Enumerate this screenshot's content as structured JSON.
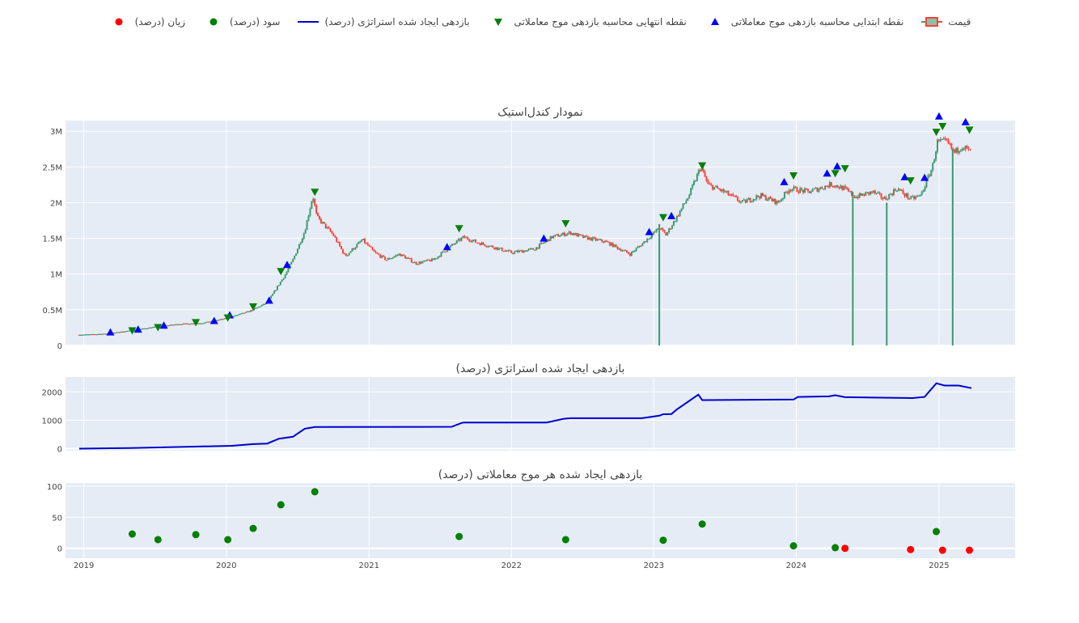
{
  "legend": [
    {
      "key": "price",
      "label": "قیمت",
      "color": "#3d9970"
    },
    {
      "key": "buy",
      "label": "نقطه ابتدایی محاسبه بازدهی موج معاملاتی",
      "color": "#0000ff"
    },
    {
      "key": "sell",
      "label": "نقطه انتهایی محاسبه بازدهی موج معاملاتی",
      "color": "#008000"
    },
    {
      "key": "strategy",
      "label": "بازدهی ایجاد شده استراتژی (درصد)",
      "color": "#0000cd"
    },
    {
      "key": "profit",
      "label": "سود (درصد)",
      "color": "#008000"
    },
    {
      "key": "loss",
      "label": "زیان (درصد)",
      "color": "#ff0000"
    }
  ],
  "chart_data": [
    {
      "type": "candlestick",
      "title": "نمودار کندل‌استیک",
      "ylim": [
        0,
        3150000
      ],
      "yticks": [
        0,
        500000,
        1000000,
        1500000,
        2000000,
        2500000,
        3000000
      ],
      "ytick_labels": [
        "0",
        "0.5M",
        "1M",
        "1.5M",
        "2M",
        "2.5M",
        "3M"
      ],
      "up_color": "#3d9970",
      "down_color": "#ff4136",
      "close_path": [
        [
          "2018-12-20",
          150000
        ],
        [
          "2019-03-01",
          165000
        ],
        [
          "2019-05-01",
          210000
        ],
        [
          "2019-07-01",
          260000
        ],
        [
          "2019-09-01",
          300000
        ],
        [
          "2019-11-01",
          315000
        ],
        [
          "2020-01-01",
          380000
        ],
        [
          "2020-03-01",
          480000
        ],
        [
          "2020-04-15",
          600000
        ],
        [
          "2020-06-01",
          1000000
        ],
        [
          "2020-06-20",
          1200000
        ],
        [
          "2020-07-20",
          1600000
        ],
        [
          "2020-08-10",
          2100000
        ],
        [
          "2020-08-20",
          1800000
        ],
        [
          "2020-10-01",
          1550000
        ],
        [
          "2020-11-01",
          1250000
        ],
        [
          "2020-12-15",
          1480000
        ],
        [
          "2021-01-15",
          1300000
        ],
        [
          "2021-02-15",
          1200000
        ],
        [
          "2021-03-20",
          1280000
        ],
        [
          "2021-05-01",
          1150000
        ],
        [
          "2021-06-15",
          1200000
        ],
        [
          "2021-08-01",
          1400000
        ],
        [
          "2021-09-01",
          1520000
        ],
        [
          "2021-10-01",
          1450000
        ],
        [
          "2021-11-15",
          1380000
        ],
        [
          "2022-01-01",
          1300000
        ],
        [
          "2022-03-01",
          1350000
        ],
        [
          "2022-04-15",
          1520000
        ],
        [
          "2022-06-01",
          1580000
        ],
        [
          "2022-07-01",
          1520000
        ],
        [
          "2022-09-01",
          1450000
        ],
        [
          "2022-11-01",
          1280000
        ],
        [
          "2022-12-01",
          1420000
        ],
        [
          "2023-01-15",
          1650000
        ],
        [
          "2023-02-01",
          1550000
        ],
        [
          "2023-03-01",
          1800000
        ],
        [
          "2023-04-01",
          2100000
        ],
        [
          "2023-05-01",
          2500000
        ],
        [
          "2023-05-20",
          2250000
        ],
        [
          "2023-07-01",
          2150000
        ],
        [
          "2023-08-15",
          2000000
        ],
        [
          "2023-10-01",
          2100000
        ],
        [
          "2023-11-15",
          2000000
        ],
        [
          "2023-12-15",
          2200000
        ],
        [
          "2024-02-01",
          2150000
        ],
        [
          "2024-04-01",
          2260000
        ],
        [
          "2024-05-01",
          2200000
        ],
        [
          "2024-06-01",
          2080000
        ],
        [
          "2024-07-15",
          2150000
        ],
        [
          "2024-08-15",
          2050000
        ],
        [
          "2024-09-15",
          2200000
        ],
        [
          "2024-10-20",
          2050000
        ],
        [
          "2024-11-15",
          2100000
        ],
        [
          "2024-12-15",
          2500000
        ],
        [
          "2024-12-28",
          2850000
        ],
        [
          "2025-01-20",
          2850000
        ],
        [
          "2025-02-10",
          2700000
        ],
        [
          "2025-03-01",
          2800000
        ],
        [
          "2025-03-25",
          2700000
        ]
      ],
      "spikes": [
        {
          "date": "2023-01-15",
          "low": 0,
          "high": 1700000
        },
        {
          "date": "2024-05-25",
          "low": 0,
          "high": 2150000
        },
        {
          "date": "2024-08-20",
          "low": 0,
          "high": 2000000
        },
        {
          "date": "2025-02-05",
          "low": 0,
          "high": 2750000
        }
      ],
      "buy_points": [
        [
          "2019-03-10",
          185000
        ],
        [
          "2019-05-20",
          225000
        ],
        [
          "2019-07-25",
          280000
        ],
        [
          "2019-12-01",
          345000
        ],
        [
          "2020-01-10",
          425000
        ],
        [
          "2020-04-20",
          630000
        ],
        [
          "2020-06-05",
          1130000
        ],
        [
          "2021-07-20",
          1380000
        ],
        [
          "2022-03-25",
          1500000
        ],
        [
          "2022-12-20",
          1590000
        ],
        [
          "2023-02-15",
          1815000
        ],
        [
          "2023-12-01",
          2290000
        ],
        [
          "2024-03-20",
          2410000
        ],
        [
          "2024-04-15",
          2510000
        ],
        [
          "2024-10-05",
          2360000
        ],
        [
          "2024-11-25",
          2350000
        ],
        [
          "2025-01-01",
          3210000
        ],
        [
          "2025-03-10",
          3130000
        ]
      ],
      "sell_points": [
        [
          "2019-05-05",
          210000
        ],
        [
          "2019-07-10",
          255000
        ],
        [
          "2019-10-15",
          325000
        ],
        [
          "2020-01-05",
          390000
        ],
        [
          "2020-03-10",
          545000
        ],
        [
          "2020-05-20",
          1040000
        ],
        [
          "2020-08-15",
          2150000
        ],
        [
          "2021-08-20",
          1640000
        ],
        [
          "2022-05-20",
          1710000
        ],
        [
          "2023-01-25",
          1795000
        ],
        [
          "2023-05-05",
          2520000
        ],
        [
          "2023-12-25",
          2380000
        ],
        [
          "2024-04-10",
          2410000
        ],
        [
          "2024-05-05",
          2480000
        ],
        [
          "2024-10-20",
          2310000
        ],
        [
          "2024-12-25",
          2990000
        ],
        [
          "2025-01-10",
          3070000
        ],
        [
          "2025-03-20",
          3020000
        ]
      ]
    },
    {
      "type": "line",
      "title": "بازدهی ایجاد شده استراتژی (درصد)",
      "ylim": [
        -70,
        2520
      ],
      "yticks": [
        0,
        1000,
        2000
      ],
      "ytick_labels": [
        "0",
        "1000",
        "2000"
      ],
      "color": "#0000cd",
      "points": [
        [
          "2018-12-20",
          0
        ],
        [
          "2019-05-01",
          20
        ],
        [
          "2019-10-01",
          70
        ],
        [
          "2020-01-15",
          100
        ],
        [
          "2020-03-10",
          160
        ],
        [
          "2020-04-15",
          180
        ],
        [
          "2020-05-15",
          350
        ],
        [
          "2020-06-20",
          420
        ],
        [
          "2020-07-20",
          700
        ],
        [
          "2020-08-15",
          760
        ],
        [
          "2021-08-01",
          770
        ],
        [
          "2021-08-25",
          900
        ],
        [
          "2021-09-01",
          920
        ],
        [
          "2022-04-01",
          920
        ],
        [
          "2022-05-15",
          1050
        ],
        [
          "2022-06-01",
          1070
        ],
        [
          "2022-12-01",
          1070
        ],
        [
          "2023-01-15",
          1160
        ],
        [
          "2023-01-25",
          1210
        ],
        [
          "2023-02-15",
          1220
        ],
        [
          "2023-03-01",
          1380
        ],
        [
          "2023-04-25",
          1900
        ],
        [
          "2023-05-05",
          1710
        ],
        [
          "2023-12-25",
          1730
        ],
        [
          "2024-01-05",
          1820
        ],
        [
          "2024-03-25",
          1840
        ],
        [
          "2024-04-10",
          1880
        ],
        [
          "2024-05-05",
          1810
        ],
        [
          "2024-10-25",
          1780
        ],
        [
          "2024-11-25",
          1820
        ],
        [
          "2024-12-25",
          2300
        ],
        [
          "2025-01-15",
          2220
        ],
        [
          "2025-02-20",
          2220
        ],
        [
          "2025-03-25",
          2130
        ]
      ]
    },
    {
      "type": "scatter",
      "title": "بازدهی ایجاد شده هر موج معاملاتی (درصد)",
      "ylim": [
        -16,
        105
      ],
      "yticks": [
        0,
        50,
        100
      ],
      "ytick_labels": [
        "0",
        "50",
        "100"
      ],
      "profit_points": [
        [
          "2019-05-05",
          23
        ],
        [
          "2019-07-10",
          14
        ],
        [
          "2019-10-15",
          22
        ],
        [
          "2020-01-05",
          14
        ],
        [
          "2020-03-10",
          32
        ],
        [
          "2020-05-20",
          70
        ],
        [
          "2020-08-15",
          91
        ],
        [
          "2021-08-20",
          19
        ],
        [
          "2022-05-20",
          14
        ],
        [
          "2023-01-25",
          13
        ],
        [
          "2023-05-05",
          39
        ],
        [
          "2023-12-25",
          4
        ],
        [
          "2024-04-10",
          1
        ],
        [
          "2024-12-25",
          27
        ]
      ],
      "loss_points": [
        [
          "2024-05-05",
          0
        ],
        [
          "2024-10-20",
          -2
        ],
        [
          "2025-01-10",
          -3
        ],
        [
          "2025-03-20",
          -3
        ]
      ]
    }
  ],
  "x_axis": {
    "tick_labels": [
      "2019",
      "2020",
      "2021",
      "2022",
      "2023",
      "2024",
      "2025"
    ],
    "ticks": [
      "2019-01-01",
      "2020-01-01",
      "2021-01-01",
      "2022-01-01",
      "2023-01-01",
      "2024-01-01",
      "2025-01-01"
    ],
    "xlim": [
      "2018-11-15",
      "2025-07-15"
    ]
  }
}
